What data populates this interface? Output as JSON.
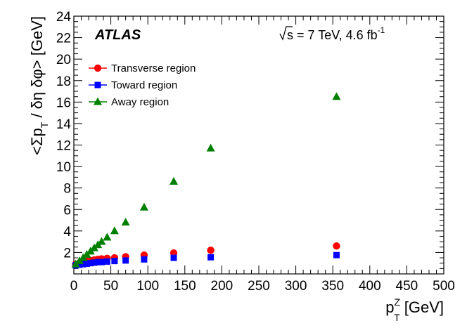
{
  "chart_data": {
    "type": "scatter",
    "experiment_label": "ATLAS",
    "energy_label": {
      "sqrt": "s",
      "text": " = 7 TeV, 4.6 fb",
      "superscript": "-1"
    },
    "xlabel": {
      "symbol": "p",
      "superscript": "Z",
      "subscript": "T",
      "unit": " [GeV]"
    },
    "ylabel": {
      "text": "<Σp",
      "subscript": "T",
      "rest": " / δη δφ> [GeV]"
    },
    "xlim": [
      0,
      500
    ],
    "ylim": [
      0,
      24
    ],
    "xticks": [
      0,
      50,
      100,
      150,
      200,
      250,
      300,
      350,
      400,
      450,
      500
    ],
    "yticks": [
      2,
      4,
      6,
      8,
      10,
      12,
      14,
      16,
      18,
      20,
      22,
      24
    ],
    "grid": false,
    "legend_position": "top-left",
    "series": [
      {
        "name": "Transverse region",
        "marker": "circle",
        "color": "#ff0000",
        "x": [
          2.5,
          7.5,
          12.5,
          17.5,
          22.5,
          27.5,
          32.5,
          37.5,
          45,
          55,
          70,
          95,
          135,
          185,
          355
        ],
        "y": [
          0.9,
          1.0,
          1.1,
          1.2,
          1.25,
          1.3,
          1.35,
          1.4,
          1.45,
          1.5,
          1.6,
          1.75,
          1.95,
          2.2,
          2.6
        ]
      },
      {
        "name": "Toward region",
        "marker": "square",
        "color": "#0000ff",
        "x": [
          2.5,
          7.5,
          12.5,
          17.5,
          22.5,
          27.5,
          32.5,
          37.5,
          45,
          55,
          70,
          95,
          135,
          185,
          355
        ],
        "y": [
          0.8,
          0.85,
          0.9,
          0.95,
          1.0,
          1.05,
          1.1,
          1.1,
          1.15,
          1.2,
          1.25,
          1.35,
          1.5,
          1.55,
          1.75
        ]
      },
      {
        "name": "Away region",
        "marker": "triangle",
        "color": "#008000",
        "x": [
          2.5,
          7.5,
          12.5,
          17.5,
          22.5,
          27.5,
          32.5,
          37.5,
          45,
          55,
          70,
          95,
          135,
          185,
          355
        ],
        "y": [
          0.9,
          1.2,
          1.5,
          1.8,
          2.1,
          2.4,
          2.7,
          3.0,
          3.4,
          4.0,
          4.8,
          6.2,
          8.6,
          11.7,
          16.5
        ]
      }
    ]
  }
}
